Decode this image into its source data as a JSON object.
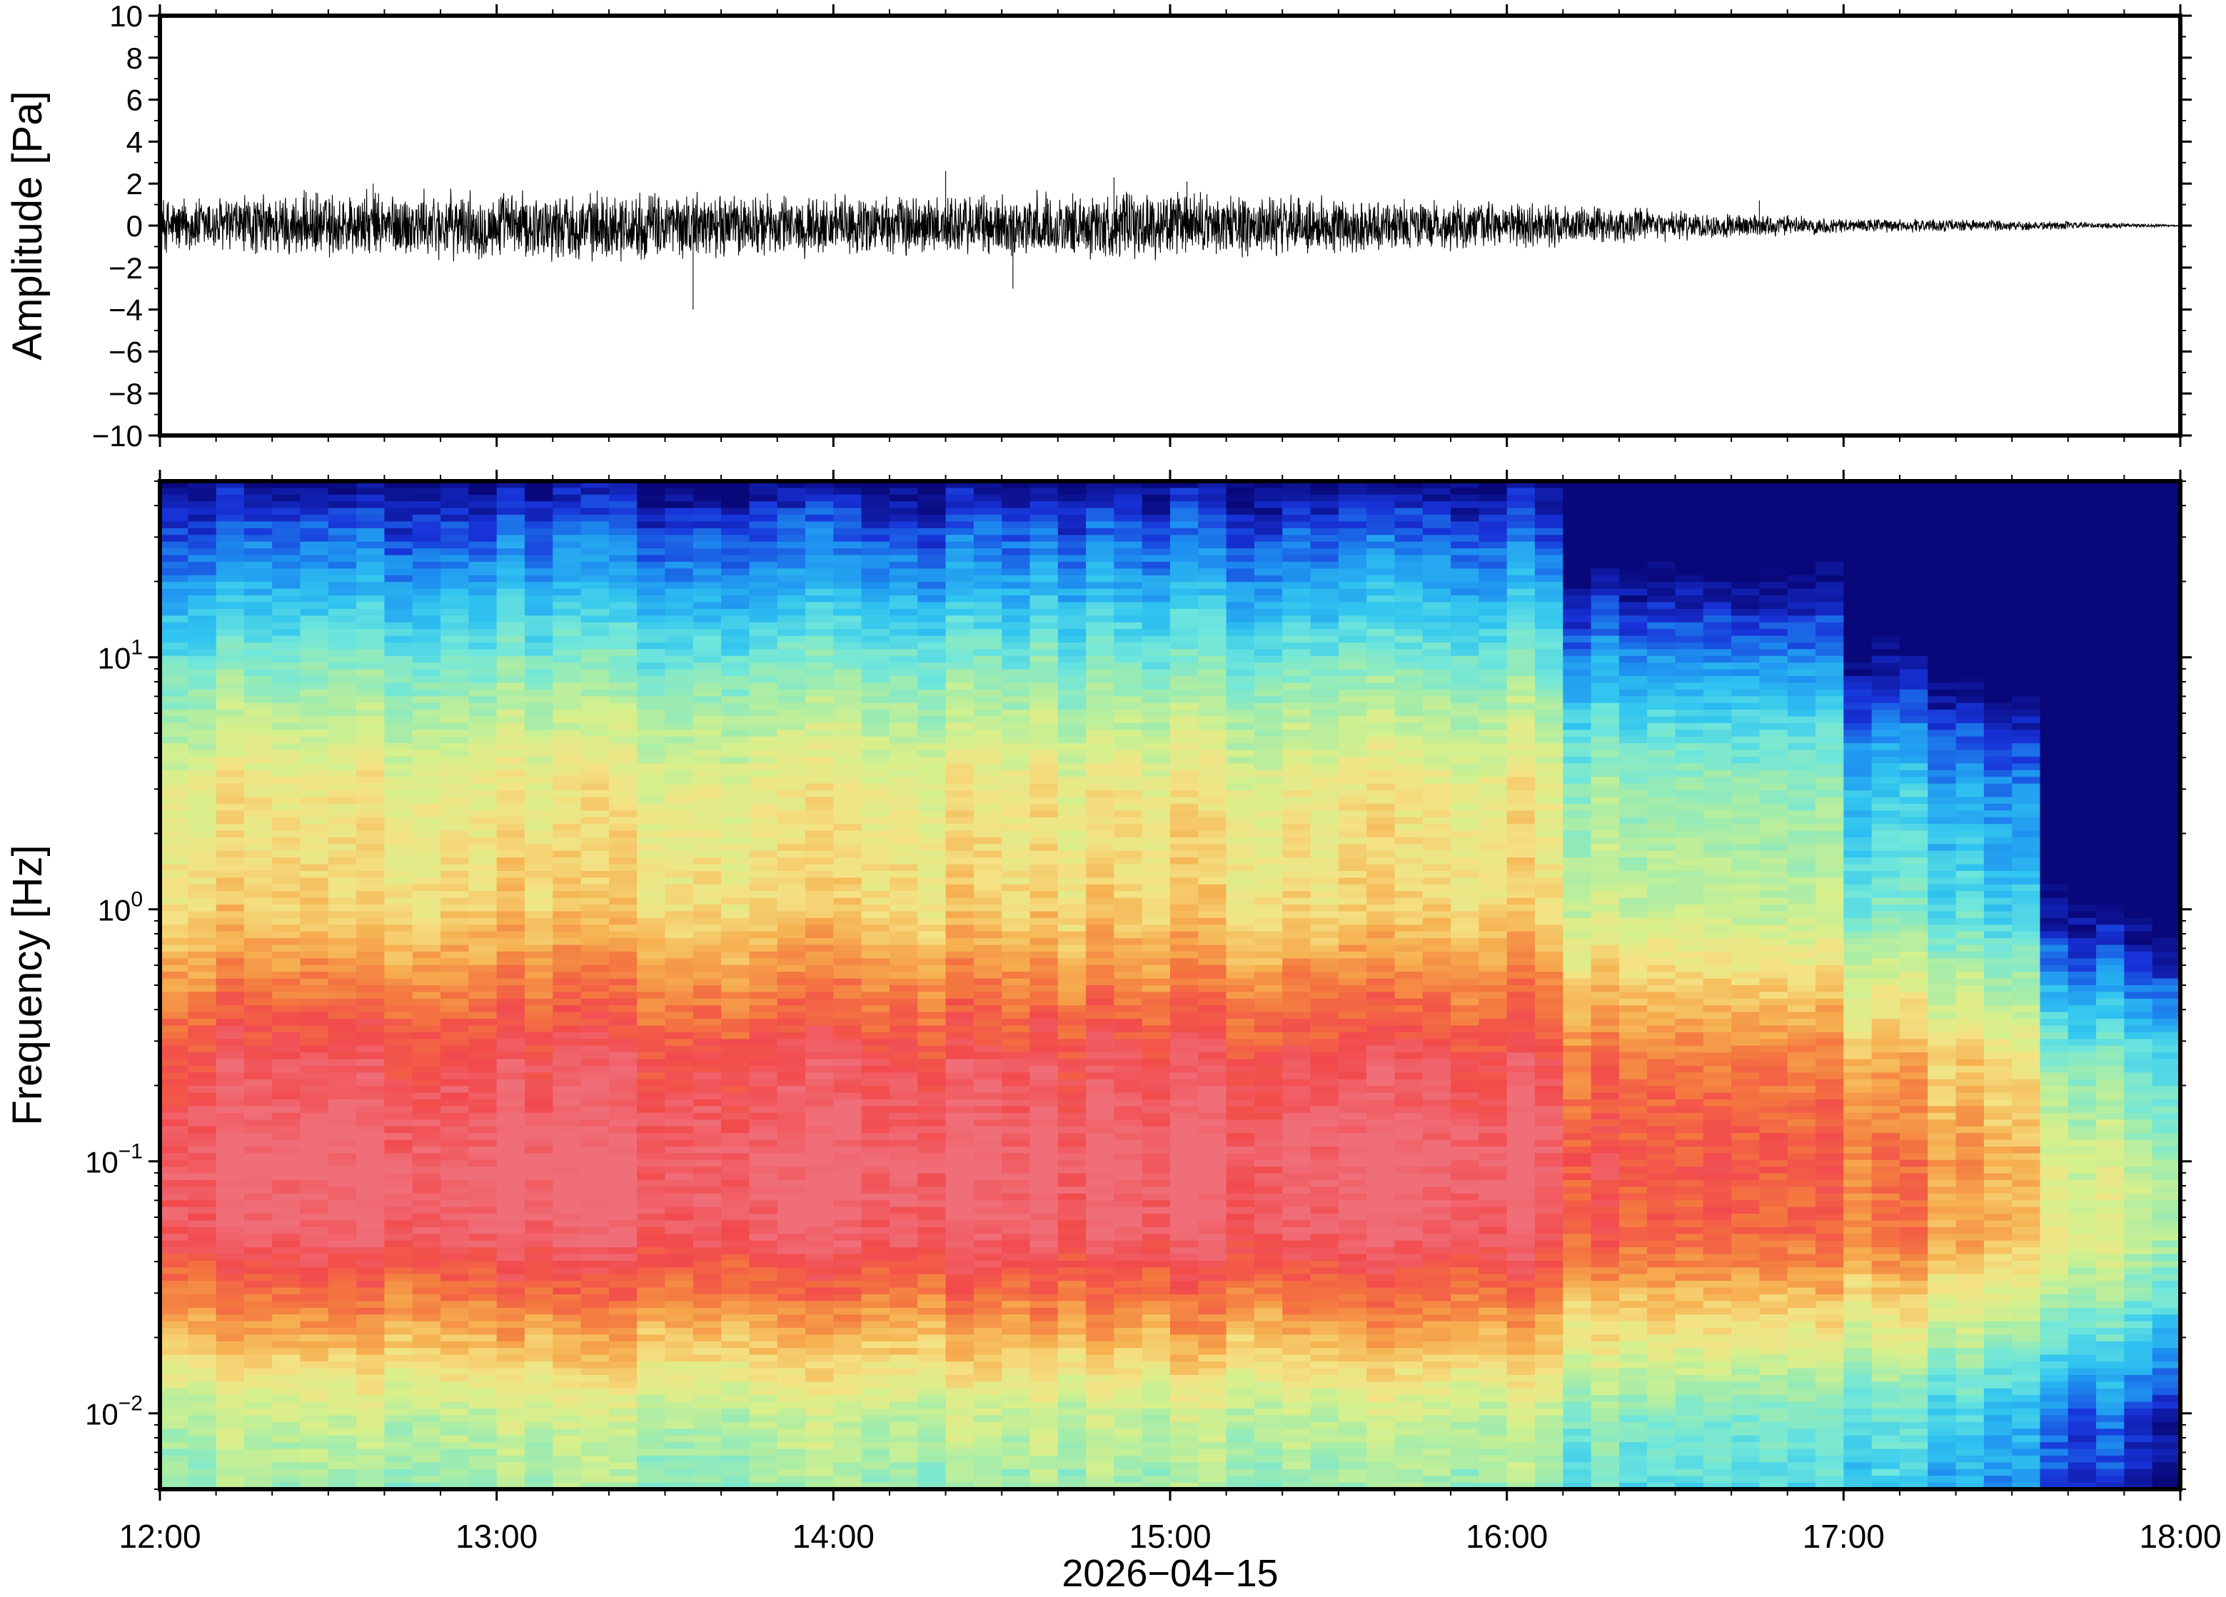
{
  "chart_data": [
    {
      "type": "line",
      "panel": "waveform",
      "ylabel": "Amplitude [Pa]",
      "ylim": [
        -10,
        10
      ],
      "yticks": [
        -10,
        -8,
        -6,
        -4,
        -2,
        0,
        2,
        4,
        6,
        8,
        10
      ],
      "ytick_labels": [
        "−10",
        "−8",
        "−6",
        "−4",
        "−2",
        "0",
        "2",
        "4",
        "6",
        "8",
        "10"
      ],
      "xlim": [
        "12:00",
        "18:00"
      ],
      "series": [
        {
          "x": [
            "12:00",
            "12:30",
            "13:00",
            "13:30",
            "14:00",
            "14:30",
            "15:00",
            "15:30",
            "16:00",
            "16:30",
            "17:00",
            "17:30",
            "18:00"
          ],
          "envelope_max": [
            1.5,
            1.8,
            1.8,
            1.8,
            1.6,
            1.7,
            1.8,
            1.5,
            1.2,
            0.8,
            0.4,
            0.3,
            0.05
          ],
          "envelope_min": [
            -1.5,
            -1.8,
            -1.8,
            -1.8,
            -1.6,
            -1.7,
            -1.8,
            -1.5,
            -1.2,
            -0.8,
            -0.4,
            -0.3,
            -0.05
          ],
          "peaks": [
            {
              "x": "12:38",
              "y": 2.0
            },
            {
              "x": "13:35",
              "y": -4.0
            },
            {
              "x": "14:20",
              "y": 2.6
            },
            {
              "x": "14:32",
              "y": -3.0
            },
            {
              "x": "14:50",
              "y": 2.3
            },
            {
              "x": "15:03",
              "y": 2.1
            },
            {
              "x": "16:45",
              "y": 1.2
            }
          ]
        }
      ],
      "grid": false
    },
    {
      "type": "heatmap",
      "panel": "spectrogram",
      "ylabel": "Frequency [Hz]",
      "yscale": "log",
      "ylim": [
        0.005,
        50
      ],
      "yticks": [
        0.01,
        0.1,
        1,
        10
      ],
      "ytick_labels": [
        {
          "base": "10",
          "exp": "−2"
        },
        {
          "base": "10",
          "exp": "−1"
        },
        {
          "base": "10",
          "exp": "0"
        },
        {
          "base": "10",
          "exp": "1"
        }
      ],
      "xlabel": "2026−04−15",
      "xticks": [
        "12:00",
        "13:00",
        "14:00",
        "15:00",
        "16:00",
        "17:00",
        "18:00"
      ],
      "colormap": [
        "#08087a",
        "#1832d8",
        "#1e90f0",
        "#30c4f0",
        "#6ee6dc",
        "#a2ecac",
        "#d6f08c",
        "#f4e284",
        "#f6b050",
        "#f47840",
        "#f24a4c",
        "#f06e78"
      ],
      "description_levels": {
        "x": [
          "12:00",
          "16:10",
          "16:20",
          "17:00",
          "17:10",
          "17:40",
          "17:50",
          "18:00"
        ],
        "band_5_50Hz": [
          "blue",
          "blue",
          "darkblue",
          "darkblue",
          "darkblue",
          "darkblue",
          "darkblue",
          "darkblue"
        ],
        "band_1_5Hz": [
          "yellow",
          "yellow",
          "cyan-green",
          "cyan-green",
          "cyan-blue",
          "green",
          "blue",
          "blue"
        ],
        "band_0.04_0.3Hz": [
          "red",
          "red",
          "red",
          "red",
          "orange",
          "orange",
          "cyan",
          "cyan"
        ]
      },
      "grid": false
    }
  ]
}
